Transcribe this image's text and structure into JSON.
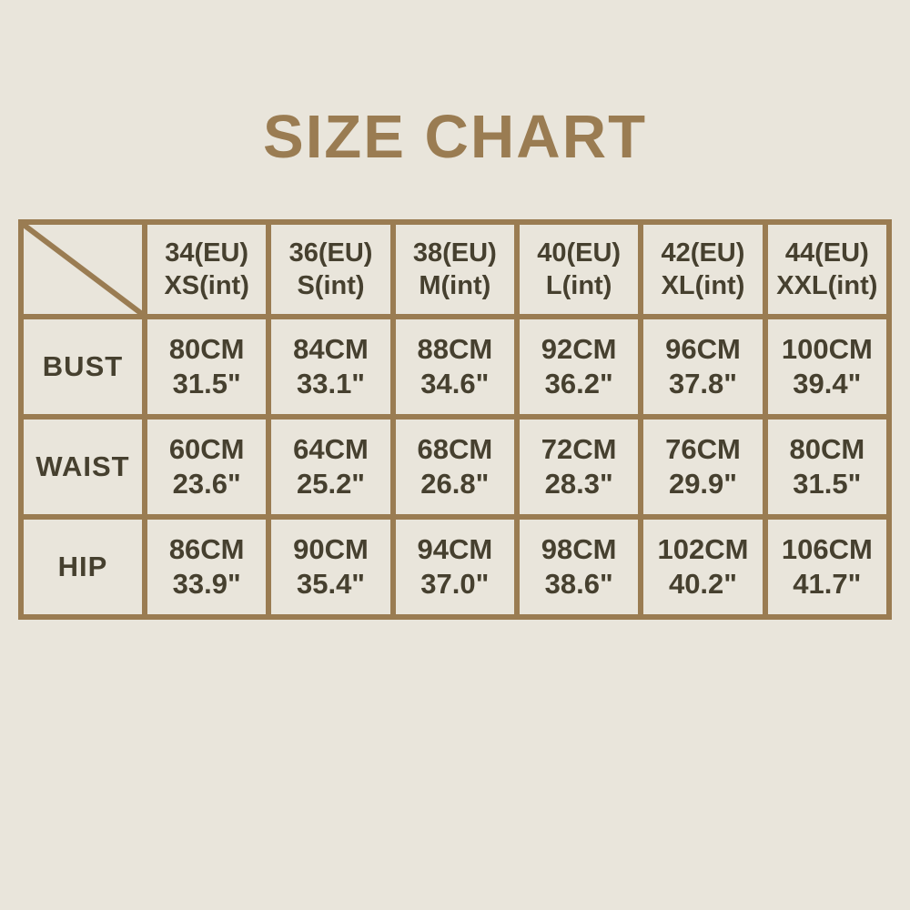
{
  "page": {
    "background_color": "#e9e5db",
    "accent_color": "#9a7c52",
    "text_color": "#46402f",
    "title": "SIZE CHART"
  },
  "chart_data": {
    "type": "table",
    "title": "SIZE CHART",
    "corner_cell": "diagonal-line",
    "columns": [
      {
        "eu": "34(EU)",
        "int": "XS(int)"
      },
      {
        "eu": "36(EU)",
        "int": "S(int)"
      },
      {
        "eu": "38(EU)",
        "int": "M(int)"
      },
      {
        "eu": "40(EU)",
        "int": "L(int)"
      },
      {
        "eu": "42(EU)",
        "int": "XL(int)"
      },
      {
        "eu": "44(EU)",
        "int": "XXL(int)"
      }
    ],
    "rows": [
      {
        "label": "BUST",
        "cells": [
          {
            "cm": "80CM",
            "in": "31.5\""
          },
          {
            "cm": "84CM",
            "in": "33.1\""
          },
          {
            "cm": "88CM",
            "in": "34.6\""
          },
          {
            "cm": "92CM",
            "in": "36.2\""
          },
          {
            "cm": "96CM",
            "in": "37.8\""
          },
          {
            "cm": "100CM",
            "in": "39.4\""
          }
        ]
      },
      {
        "label": "WAIST",
        "cells": [
          {
            "cm": "60CM",
            "in": "23.6\""
          },
          {
            "cm": "64CM",
            "in": "25.2\""
          },
          {
            "cm": "68CM",
            "in": "26.8\""
          },
          {
            "cm": "72CM",
            "in": "28.3\""
          },
          {
            "cm": "76CM",
            "in": "29.9\""
          },
          {
            "cm": "80CM",
            "in": "31.5\""
          }
        ]
      },
      {
        "label": "HIP",
        "cells": [
          {
            "cm": "86CM",
            "in": "33.9\""
          },
          {
            "cm": "90CM",
            "in": "35.4\""
          },
          {
            "cm": "94CM",
            "in": "37.0\""
          },
          {
            "cm": "98CM",
            "in": "38.6\""
          },
          {
            "cm": "102CM",
            "in": "40.2\""
          },
          {
            "cm": "106CM",
            "in": "41.7\""
          }
        ]
      }
    ]
  }
}
